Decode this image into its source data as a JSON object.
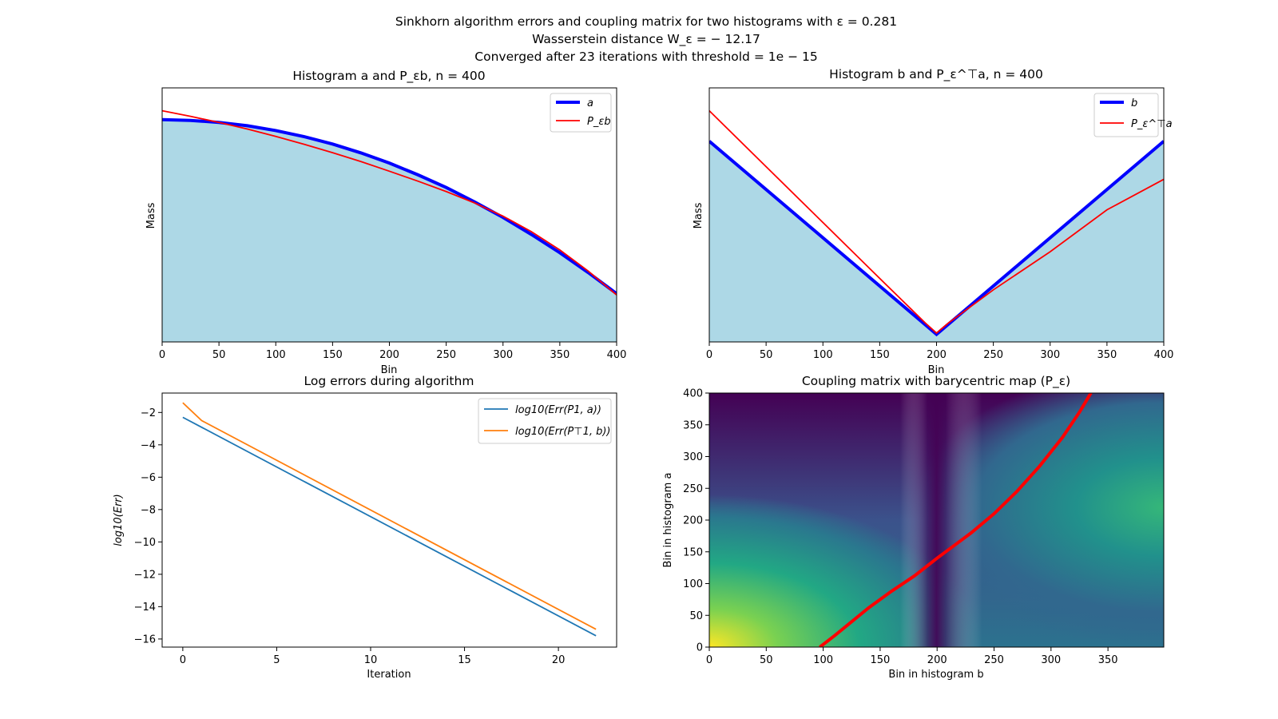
{
  "figure": {
    "suptitle": [
      "Sinkhorn algorithm errors and coupling matrix for two histograms with ε = 0.281",
      "Wasserstein distance W_ε = − 12.17",
      "Converged after 23 iterations with threshold = 1e − 15"
    ]
  },
  "chart_data": [
    {
      "id": "hist_a",
      "type": "area",
      "title": "Histogram a and P_εb, n = 400",
      "xlabel": "Bin",
      "ylabel": "Mass",
      "xlim": [
        0,
        400
      ],
      "ylim": [
        0,
        1
      ],
      "x_ticks": [
        0,
        50,
        100,
        150,
        200,
        250,
        300,
        350,
        400
      ],
      "legend_position": "top-right",
      "series": [
        {
          "name": "a",
          "color": "#0000ff",
          "style": "thick-line+fill",
          "fill": "#add8e6",
          "x": [
            0,
            25,
            50,
            75,
            100,
            125,
            150,
            175,
            200,
            225,
            250,
            275,
            300,
            325,
            350,
            375,
            400
          ],
          "y": [
            0.875,
            0.872,
            0.864,
            0.851,
            0.832,
            0.808,
            0.779,
            0.744,
            0.704,
            0.658,
            0.608,
            0.551,
            0.49,
            0.423,
            0.351,
            0.273,
            0.19
          ]
        },
        {
          "name": "P_εb",
          "color": "#ff0000",
          "style": "line",
          "x": [
            0,
            25,
            50,
            75,
            100,
            125,
            150,
            175,
            200,
            225,
            250,
            275,
            300,
            325,
            350,
            375,
            400
          ],
          "y": [
            0.91,
            0.888,
            0.864,
            0.838,
            0.809,
            0.778,
            0.745,
            0.71,
            0.672,
            0.633,
            0.592,
            0.547,
            0.495,
            0.434,
            0.362,
            0.279,
            0.185
          ]
        }
      ]
    },
    {
      "id": "hist_b",
      "type": "area",
      "title": "Histogram b and P_ε^⊤a, n = 400",
      "xlabel": "Bin",
      "ylabel": "Mass",
      "xlim": [
        0,
        400
      ],
      "ylim": [
        0,
        1
      ],
      "x_ticks": [
        0,
        50,
        100,
        150,
        200,
        250,
        300,
        350,
        400
      ],
      "legend_position": "top-right",
      "series": [
        {
          "name": "b",
          "color": "#0000ff",
          "style": "thick-line+fill",
          "fill": "#add8e6",
          "x": [
            0,
            200,
            400
          ],
          "y": [
            0.79,
            0.03,
            0.79
          ]
        },
        {
          "name": "P_ε^⊤a",
          "color": "#ff0000",
          "style": "line",
          "x": [
            0,
            50,
            100,
            150,
            190,
            200,
            210,
            250,
            300,
            350,
            400
          ],
          "y": [
            0.91,
            0.69,
            0.47,
            0.25,
            0.075,
            0.035,
            0.073,
            0.205,
            0.355,
            0.52,
            0.64
          ]
        }
      ]
    },
    {
      "id": "log_errors",
      "type": "line",
      "title": "Log errors during algorithm",
      "xlabel": "Iteration",
      "ylabel": "log10(Err)",
      "xlim": [
        -1.1,
        23.1
      ],
      "ylim": [
        -16.5,
        -0.8
      ],
      "x_ticks": [
        0,
        5,
        10,
        15,
        20
      ],
      "y_ticks": [
        -2,
        -4,
        -6,
        -8,
        -10,
        -12,
        -14,
        -16
      ],
      "legend_position": "top-right",
      "series": [
        {
          "name": "log10(Err(P1, a))",
          "color": "#1f77b4",
          "x": [
            0,
            22
          ],
          "y": [
            -2.3,
            -15.8
          ]
        },
        {
          "name": "log10(Err(P⊤1, b))",
          "color": "#ff7f0e",
          "x": [
            0,
            1,
            22
          ],
          "y": [
            -1.4,
            -2.5,
            -15.4
          ]
        }
      ]
    },
    {
      "id": "coupling",
      "type": "heatmap",
      "title": "Coupling matrix with barycentric map (P_ε)",
      "xlabel": "Bin in histogram b",
      "ylabel": "Bin in histogram a",
      "xlim": [
        0,
        399
      ],
      "ylim": [
        0,
        400
      ],
      "x_ticks": [
        0,
        50,
        100,
        150,
        200,
        250,
        300,
        350
      ],
      "y_ticks": [
        0,
        50,
        100,
        150,
        200,
        250,
        300,
        350,
        400
      ],
      "colormap": "viridis",
      "barycentric_map": {
        "color": "#ff0000",
        "x": [
          97,
          110,
          125,
          140,
          160,
          180,
          200,
          215,
          230,
          250,
          270,
          290,
          310,
          325,
          335
        ],
        "y": [
          0,
          18,
          40,
          62,
          88,
          112,
          140,
          160,
          180,
          210,
          245,
          285,
          330,
          370,
          400
        ]
      }
    }
  ]
}
